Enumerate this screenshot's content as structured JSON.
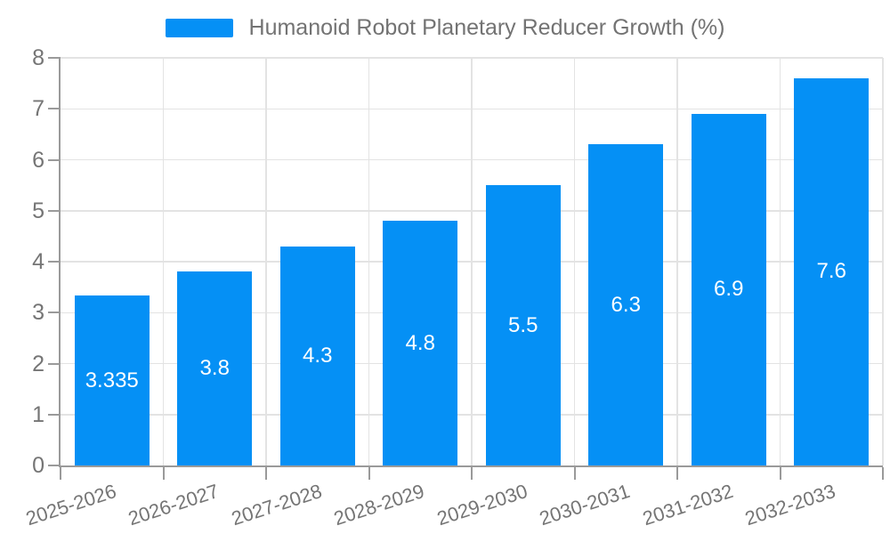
{
  "chart_data": {
    "type": "bar",
    "title": "Humanoid Robot Planetary Reducer Growth (%)",
    "categories": [
      "2025-2026",
      "2026-2027",
      "2027-2028",
      "2028-2029",
      "2029-2030",
      "2030-2031",
      "2031-2032",
      "2032-2033"
    ],
    "values": [
      3.335,
      3.8,
      4.3,
      4.8,
      5.5,
      6.3,
      6.9,
      7.6
    ],
    "value_labels": [
      "3.335",
      "3.8",
      "4.3",
      "4.8",
      "5.5",
      "6.3",
      "6.9",
      "7.6"
    ],
    "xlabel": "",
    "ylabel": "",
    "ylim": [
      0,
      8
    ],
    "ytick_step": 1,
    "ytick_labels": [
      "0",
      "1",
      "2",
      "3",
      "4",
      "5",
      "6",
      "7",
      "8"
    ],
    "grid": "both",
    "legend_position": "top-center",
    "x_label_rotation_deg": -18,
    "colors": {
      "bar": "#0590f5",
      "bar_label": "#ffffff",
      "axis": "#9a9a9a",
      "grid": "#e3e3e3",
      "tick_text": "#757575",
      "legend_text": "#737373",
      "background": "#ffffff"
    }
  }
}
